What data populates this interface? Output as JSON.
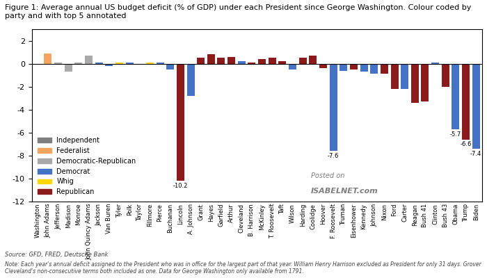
{
  "chart_data": {
    "type": "bar",
    "title": "Figure 1: Average annual US budget deficit (% of GDP) under each President since George Washington. Colour coded by\nparty and with top 5 annotated",
    "source": "Source: GFD, FRED, Deutsche Bank",
    "note": "Note: Each year's annual deficit assigned to the President who was in office for the largest part of that year. William Henry Harrison excluded as President for only 31 days. Grover Cleveland's non-consecutive terms both included as one. Data for George Washington only available from 1791.",
    "watermark": [
      "Posted on",
      "ISABELNET.com"
    ],
    "categories": [
      "Washington",
      "John Adams",
      "Jefferson",
      "Madison",
      "Monroe",
      "John Quincy Adams",
      "Jackson",
      "Van Buren",
      "Tyler",
      "Polk",
      "Taylor",
      "Fillmore",
      "Pierce",
      "Buchanan",
      "Lincoln",
      "A. Johnson",
      "Grant",
      "Hayes",
      "Garfield",
      "Arthur",
      "Cleveland",
      "B. Harrison",
      "McKinley",
      "T. Roosevelt",
      "Taft",
      "Wilson",
      "Harding",
      "Coolidge",
      "Hoover",
      "F. Roosevelt",
      "Truman",
      "Eisenhower",
      "Kennedy",
      "Johnson",
      "Nixon",
      "Ford",
      "Carter",
      "Reagan",
      "Bush 41",
      "Clinton",
      "Bush 43",
      "Obama",
      "Trump",
      "Biden"
    ],
    "values": [
      -0.1,
      0.9,
      0.1,
      -0.7,
      0.1,
      0.7,
      0.1,
      -0.2,
      0.1,
      0.1,
      -0.1,
      0.1,
      0.1,
      -0.5,
      -10.2,
      -2.8,
      0.5,
      0.8,
      0.5,
      0.6,
      0.2,
      0.1,
      0.4,
      0.5,
      0.2,
      -0.5,
      0.5,
      0.7,
      -0.4,
      -7.6,
      -0.6,
      -0.5,
      -0.7,
      -0.9,
      -0.9,
      -2.2,
      -2.2,
      -3.4,
      -3.3,
      0.1,
      -2.0,
      -5.7,
      -6.6,
      -7.4
    ],
    "colors": [
      "#7F7F7F",
      "#F4A460",
      "#A9A9A9",
      "#A9A9A9",
      "#A9A9A9",
      "#A9A9A9",
      "#4472C4",
      "#4472C4",
      "#FFD700",
      "#4472C4",
      "#FFD700",
      "#FFD700",
      "#4472C4",
      "#4472C4",
      "#8B1A1A",
      "#4472C4",
      "#8B1A1A",
      "#8B1A1A",
      "#8B1A1A",
      "#8B1A1A",
      "#4472C4",
      "#8B1A1A",
      "#8B1A1A",
      "#8B1A1A",
      "#8B1A1A",
      "#4472C4",
      "#8B1A1A",
      "#8B1A1A",
      "#8B1A1A",
      "#4472C4",
      "#4472C4",
      "#8B1A1A",
      "#4472C4",
      "#4472C4",
      "#8B1A1A",
      "#8B1A1A",
      "#4472C4",
      "#8B1A1A",
      "#8B1A1A",
      "#4472C4",
      "#8B1A1A",
      "#4472C4",
      "#8B1A1A",
      "#4472C4"
    ],
    "annotations": [
      {
        "category": "Lincoln",
        "value": -10.2,
        "label": "-10.2"
      },
      {
        "category": "F. Roosevelt",
        "value": -7.6,
        "label": "-7.6"
      },
      {
        "category": "Obama",
        "value": -5.7,
        "label": "-5.7"
      },
      {
        "category": "Trump",
        "value": -6.6,
        "label": "-6.6"
      },
      {
        "category": "Biden",
        "value": -7.4,
        "label": "-7.4"
      }
    ],
    "legend": "lower left",
    "legend_entries": [
      {
        "name": "Independent",
        "color": "#7F7F7F"
      },
      {
        "name": "Federalist",
        "color": "#F4A460"
      },
      {
        "name": "Democratic-Republican",
        "color": "#A9A9A9"
      },
      {
        "name": "Democrat",
        "color": "#4472C4"
      },
      {
        "name": "Whig",
        "color": "#FFD700"
      },
      {
        "name": "Republican",
        "color": "#8B1A1A"
      }
    ],
    "ylim": [
      -12,
      3
    ],
    "yticks": [
      -12,
      -10,
      -8,
      -6,
      -4,
      -2,
      0,
      2
    ]
  }
}
